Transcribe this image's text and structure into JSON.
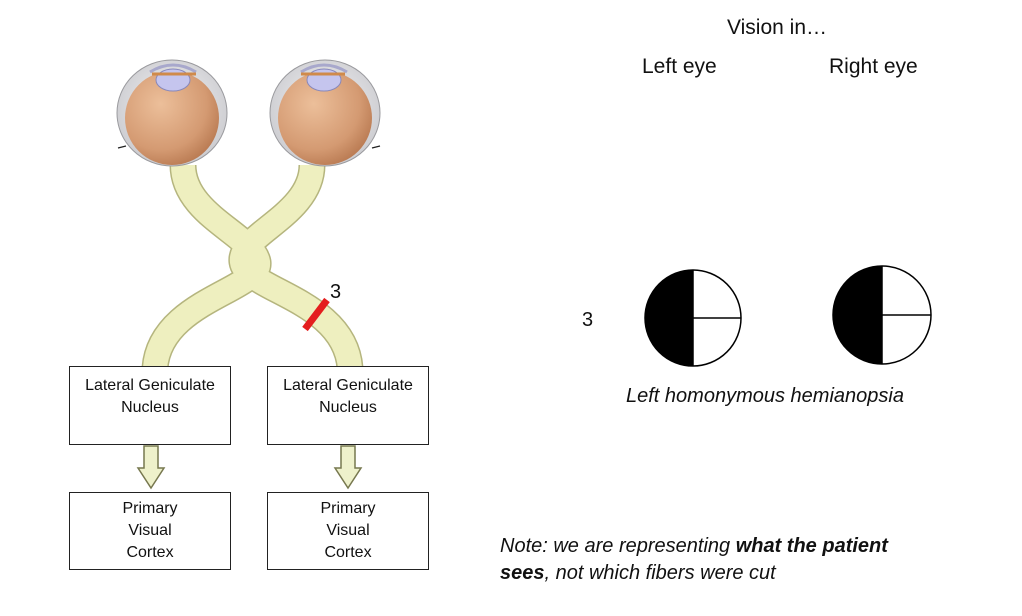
{
  "header": {
    "title": "Vision in…",
    "left_eye": "Left eye",
    "right_eye": "Right eye"
  },
  "lesion": {
    "label": "3",
    "color": "#e41e1e"
  },
  "visual_field": {
    "row_label": "3",
    "caption": "Left homonymous hemianopsia",
    "left_eye": {
      "blind_half": "left",
      "fill": "#000000"
    },
    "right_eye": {
      "blind_half": "left",
      "fill": "#000000"
    }
  },
  "pathway": {
    "left": {
      "lgn_line1": "Lateral Geniculate",
      "lgn_line2": "Nucleus",
      "cortex_line1": "Primary",
      "cortex_line2": "Visual",
      "cortex_line3": "Cortex"
    },
    "right": {
      "lgn_line1": "Lateral Geniculate",
      "lgn_line2": "Nucleus",
      "cortex_line1": "Primary",
      "cortex_line2": "Visual",
      "cortex_line3": "Cortex"
    }
  },
  "note": {
    "prefix": "Note: we are representing ",
    "bold1": "what the patient",
    "bold2": "sees",
    "suffix": ", not which fibers were cut"
  },
  "colors": {
    "nerve_fill": "#eeefbf",
    "nerve_stroke": "#b5b57e",
    "eyeball": "#d9a27c",
    "sclera": "#e8e8ea",
    "lens": "#c5c5ee",
    "arrow_fill": "#eef1cb",
    "arrow_stroke": "#77784f"
  }
}
